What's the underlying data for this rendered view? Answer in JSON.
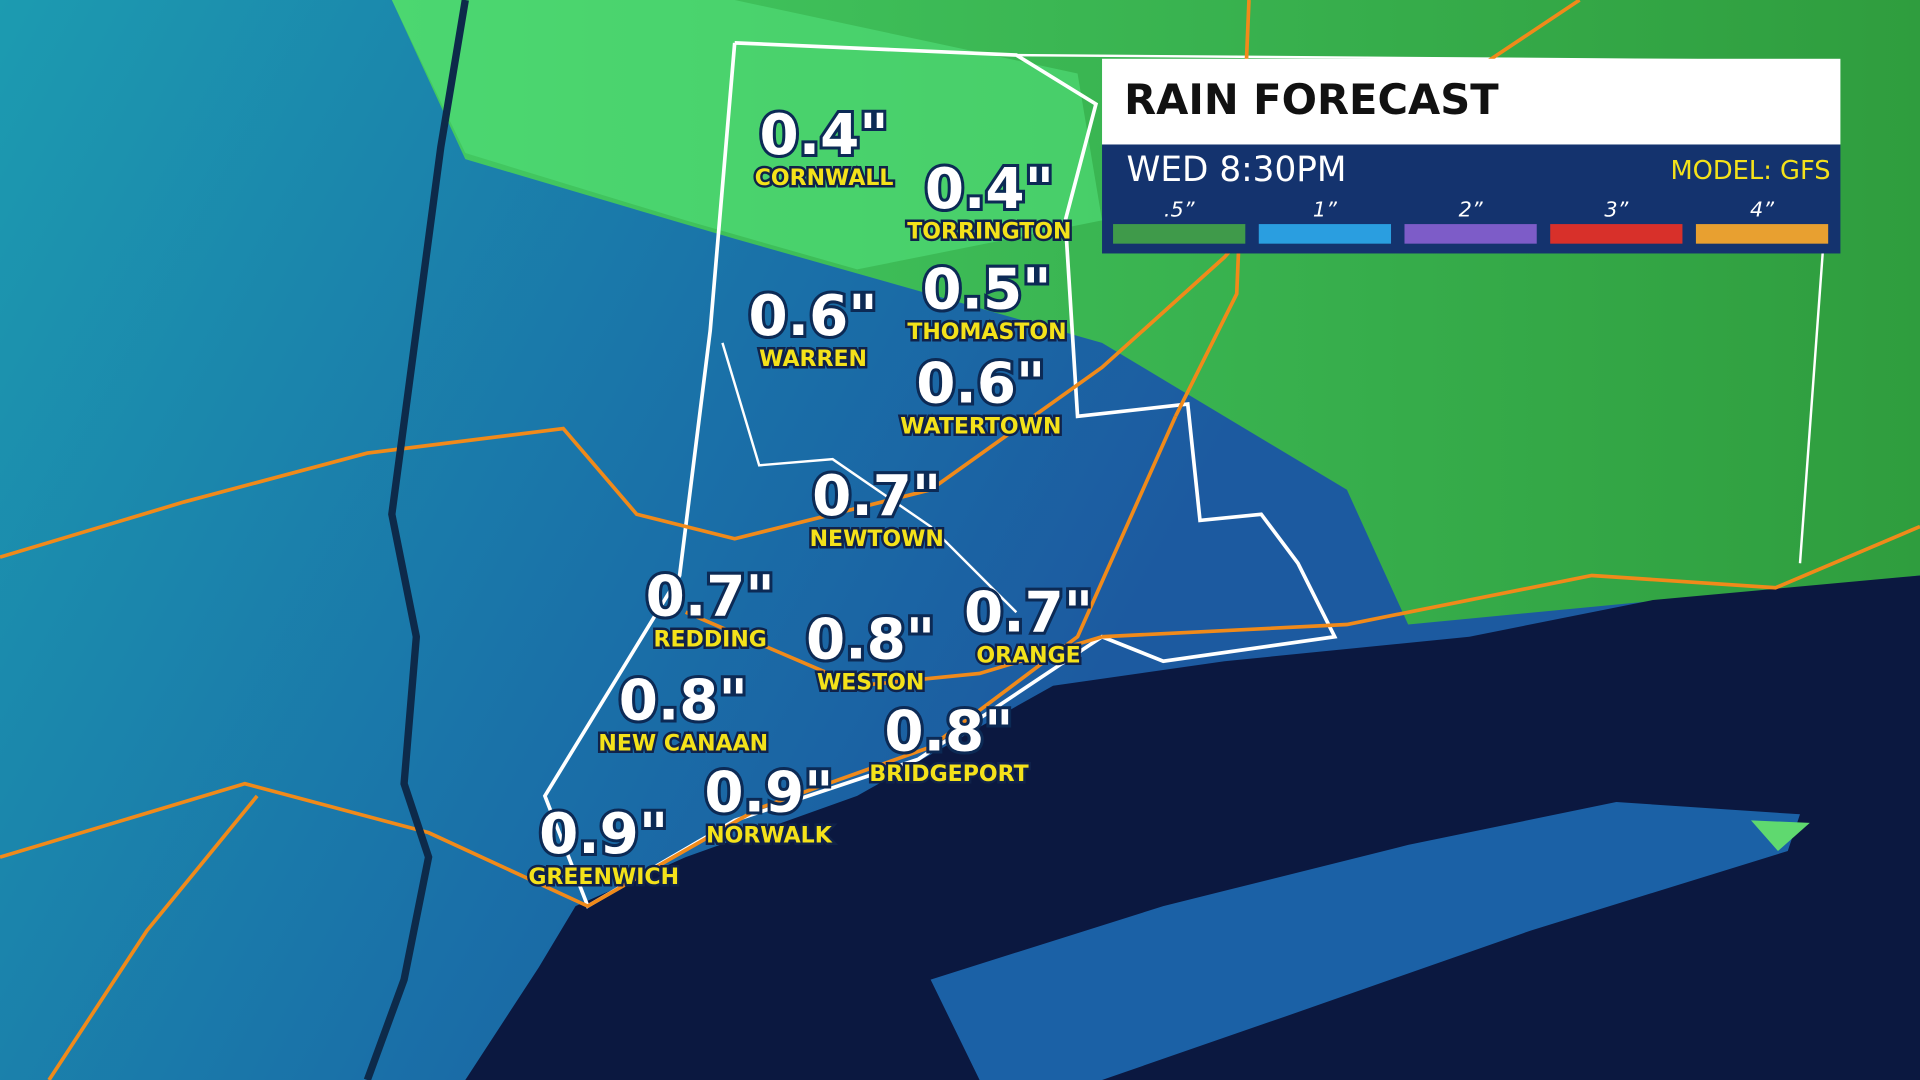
{
  "header": {
    "title": "RAIN FORECAST",
    "time": "WED 8:30PM",
    "model": "MODEL: GFS"
  },
  "legend": [
    {
      "label": ".5”",
      "color": "#3f9a4a"
    },
    {
      "label": "1”",
      "color": "#2a9ee0"
    },
    {
      "label": "2”",
      "color": "#7d5cc8"
    },
    {
      "label": "3”",
      "color": "#d8302a"
    },
    {
      "label": "4”",
      "color": "#e8a030"
    }
  ],
  "cities": [
    {
      "name": "CORNWALL",
      "amount": "0.4\""
    },
    {
      "name": "TORRINGTON",
      "amount": "0.4\""
    },
    {
      "name": "WARREN",
      "amount": "0.6\""
    },
    {
      "name": "THOMASTON",
      "amount": "0.5\""
    },
    {
      "name": "WATERTOWN",
      "amount": "0.6\""
    },
    {
      "name": "NEWTOWN",
      "amount": "0.7\""
    },
    {
      "name": "REDDING",
      "amount": "0.7\""
    },
    {
      "name": "WESTON",
      "amount": "0.8\""
    },
    {
      "name": "ORANGE",
      "amount": "0.7\""
    },
    {
      "name": "NEW CANAAN",
      "amount": "0.8\""
    },
    {
      "name": "BRIDGEPORT",
      "amount": "0.8\""
    },
    {
      "name": "NORWALK",
      "amount": "0.9\""
    },
    {
      "name": "GREENWICH",
      "amount": "0.9\""
    }
  ]
}
